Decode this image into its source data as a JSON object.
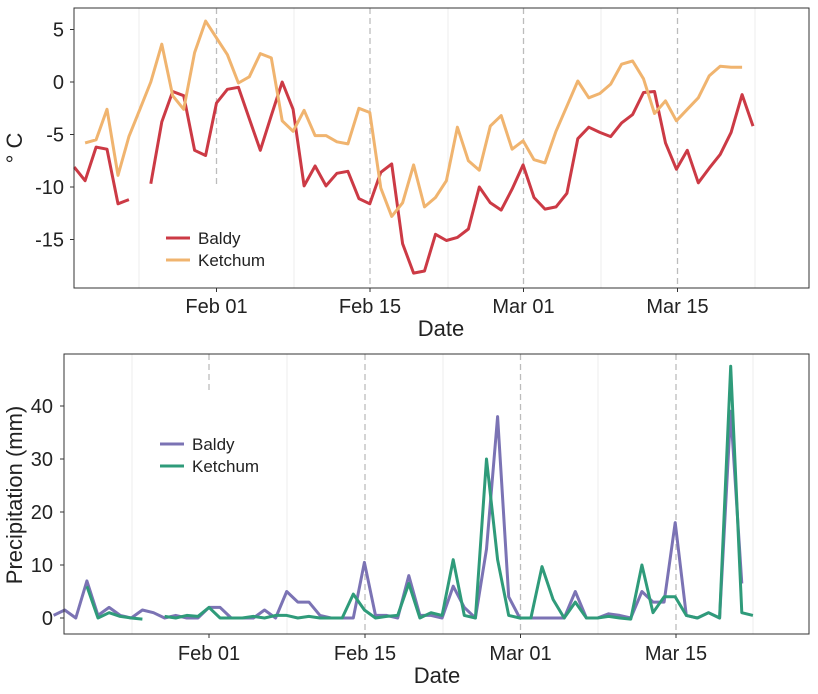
{
  "chart_data": [
    {
      "type": "line",
      "title": "",
      "xlabel": "Date",
      "ylabel": "° C",
      "x_ticks": [
        "Feb 01",
        "Feb 15",
        "Mar 01",
        "Mar 15"
      ],
      "y_ticks": [
        "5",
        "0",
        "-5",
        "-10",
        "-15"
      ],
      "ylim": [
        -19.5,
        7
      ],
      "grid": "vertical lines only (light solid weekly, dashed at major ticks)",
      "legend_position": "bottom-left",
      "series": [
        {
          "name": "Baldy",
          "color": "#cc3a45",
          "start_date": "2016-01-19",
          "values": [
            -8.1,
            -9.4,
            -6.2,
            -6.4,
            -11.6,
            -11.2,
            null,
            -9.7,
            -3.8,
            -0.9,
            -1.3,
            -6.5,
            -7.0,
            -2.0,
            -0.7,
            -0.5,
            -3.5,
            -6.5,
            -3.2,
            0.0,
            -2.6,
            -9.9,
            -8.0,
            -9.9,
            -8.7,
            -8.5,
            -11.1,
            -11.6,
            -8.6,
            -7.8,
            -15.4,
            -18.2,
            -18.0,
            -14.5,
            -15.1,
            -14.8,
            -14.0,
            -10.0,
            -11.5,
            -12.2,
            -10.2,
            -7.9,
            -11.0,
            -12.1,
            -11.9,
            -10.6,
            -5.4,
            -4.3,
            -4.8,
            -5.2,
            -3.9,
            -3.1,
            -1.0,
            -0.9,
            -5.8,
            -8.3,
            -6.5,
            -9.6,
            -8.2,
            -6.9,
            -4.8,
            -1.2,
            -4.2
          ]
        },
        {
          "name": "Ketchum",
          "color": "#f0b46f",
          "start_date": "2016-01-19",
          "values": [
            null,
            -5.8,
            -5.5,
            -2.6,
            -8.9,
            -5.2,
            -2.6,
            0.0,
            3.6,
            -1.3,
            -2.6,
            2.8,
            5.8,
            4.2,
            2.6,
            -0.1,
            0.5,
            2.7,
            2.3,
            -3.7,
            -4.7,
            -2.7,
            -5.1,
            -5.1,
            -5.7,
            -5.9,
            -2.5,
            -2.9,
            -10.1,
            -12.8,
            -11.5,
            -7.9,
            -11.9,
            -11.0,
            -9.4,
            -4.3,
            -7.5,
            -8.4,
            -4.2,
            -3.2,
            -6.4,
            -5.6,
            -7.4,
            -7.7,
            -4.7,
            -2.3,
            0.1,
            -1.5,
            -1.1,
            -0.2,
            1.7,
            2.0,
            0.3,
            -3.0,
            -1.8,
            -3.7,
            -2.6,
            -1.5,
            0.6,
            1.5,
            1.4,
            1.4
          ]
        }
      ]
    },
    {
      "type": "line",
      "title": "",
      "xlabel": "Date",
      "ylabel": "Precipitation (mm)",
      "x_ticks": [
        "Feb 01",
        "Feb 15",
        "Mar 01",
        "Mar 15"
      ],
      "y_ticks": [
        "0",
        "10",
        "20",
        "30",
        "40"
      ],
      "ylim": [
        -3,
        49.5
      ],
      "grid": "vertical lines only (light solid weekly, dashed at major ticks)",
      "legend_position": "upper-left",
      "series": [
        {
          "name": "Baldy",
          "color": "#7b73b4",
          "start_date": "2016-01-18",
          "values": [
            0.5,
            1.5,
            0.0,
            7.0,
            0.5,
            2.0,
            0.5,
            0.0,
            1.5,
            1.0,
            0.0,
            0.5,
            0.0,
            0.0,
            2.0,
            2.0,
            0.0,
            0.0,
            0.0,
            1.5,
            0.0,
            5.0,
            3.0,
            3.0,
            0.5,
            0.0,
            0.0,
            0.0,
            10.5,
            0.5,
            0.5,
            0.0,
            8.0,
            0.5,
            0.5,
            0.0,
            6.0,
            2.0,
            0.0,
            13.0,
            38.0,
            4.0,
            0.0,
            0.0,
            0.0,
            0.0,
            0.0,
            5.0,
            0.0,
            0.0,
            0.8,
            0.5,
            0.0,
            5.0,
            3.0,
            3.0,
            18.0,
            0.5,
            0.0,
            1.0,
            0.0,
            39.0,
            6.5
          ]
        },
        {
          "name": "Ketchum",
          "color": "#2f9b7a",
          "start_date": "2016-01-18",
          "values": [
            null,
            null,
            null,
            6.0,
            0.0,
            1.0,
            0.3,
            0.0,
            -0.2,
            null,
            0.3,
            0.0,
            0.5,
            0.3,
            2.0,
            0.0,
            0.0,
            0.0,
            0.3,
            0.0,
            0.5,
            0.5,
            0.0,
            0.3,
            0.0,
            0.0,
            0.0,
            4.5,
            1.5,
            0.0,
            0.3,
            0.5,
            6.5,
            0.0,
            1.0,
            0.5,
            11.0,
            0.5,
            0.0,
            30.0,
            11.0,
            0.5,
            0.0,
            0.0,
            9.7,
            3.5,
            0.0,
            3.0,
            0.0,
            0.0,
            0.3,
            0.0,
            -0.2,
            10.0,
            1.0,
            4.0,
            4.0,
            0.5,
            0.0,
            1.0,
            0.0,
            47.5,
            1.0,
            0.5
          ]
        }
      ]
    }
  ]
}
